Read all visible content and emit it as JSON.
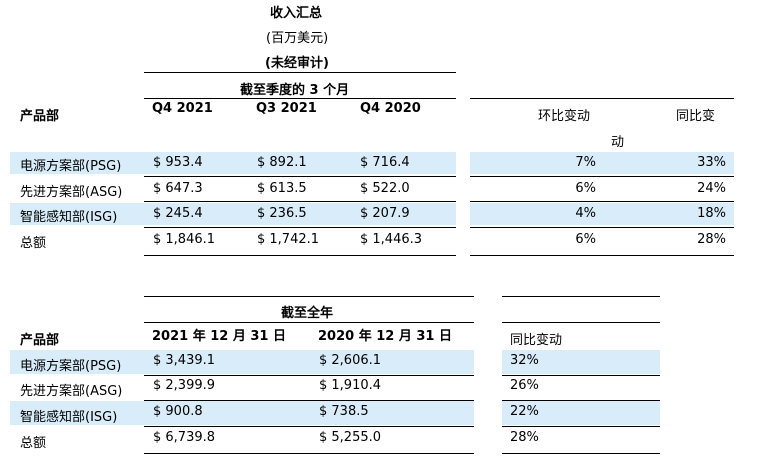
{
  "header": {
    "title": "收入汇总",
    "unit": "(百万美元)",
    "audit_note": "(未经审计)"
  },
  "quarterly": {
    "period_label": "截至季度的 3 个月",
    "row_header": "产品部",
    "columns": [
      "Q4 2021",
      "Q3 2021",
      "Q4 2020"
    ],
    "change_headers": {
      "qoq": "环比变动",
      "yoy_part1": "同比变",
      "yoy_part2": "动"
    },
    "rows": [
      {
        "name": "电源方案部(PSG)",
        "values": [
          "$ 953.4",
          "$ 892.1",
          "$ 716.4"
        ],
        "qoq": "7%",
        "yoy": "33%",
        "highlight": true
      },
      {
        "name": "先进方案部(ASG)",
        "values": [
          "$ 647.3",
          "$ 613.5",
          "$ 522.0"
        ],
        "qoq": "6%",
        "yoy": "24%",
        "highlight": false
      },
      {
        "name": "智能感知部(ISG)",
        "values": [
          "$ 245.4",
          "$ 236.5",
          "$ 207.9"
        ],
        "qoq": "4%",
        "yoy": "18%",
        "highlight": true
      },
      {
        "name": "总额",
        "values": [
          "$ 1,846.1",
          "$ 1,742.1",
          "$ 1,446.3"
        ],
        "qoq": "6%",
        "yoy": "28%",
        "highlight": false
      }
    ]
  },
  "annual": {
    "period_label": "截至全年",
    "row_header": "产品部",
    "columns": [
      "2021 年 12 月 31 日",
      "2020 年 12 月 31 日"
    ],
    "change_header": "同比变动",
    "rows": [
      {
        "name": "电源方案部(PSG)",
        "values": [
          "$ 3,439.1",
          "$ 2,606.1"
        ],
        "yoy": "32%",
        "highlight": true
      },
      {
        "name": "先进方案部(ASG)",
        "values": [
          "$ 2,399.9",
          "$ 1,910.4"
        ],
        "yoy": "26%",
        "highlight": false
      },
      {
        "name": "智能感知部(ISG)",
        "values": [
          "$ 900.8",
          "$ 738.5"
        ],
        "yoy": "22%",
        "highlight": true
      },
      {
        "name": "总额",
        "values": [
          "$ 6,739.8",
          "$ 5,255.0"
        ],
        "yoy": "28%",
        "highlight": false
      }
    ]
  }
}
